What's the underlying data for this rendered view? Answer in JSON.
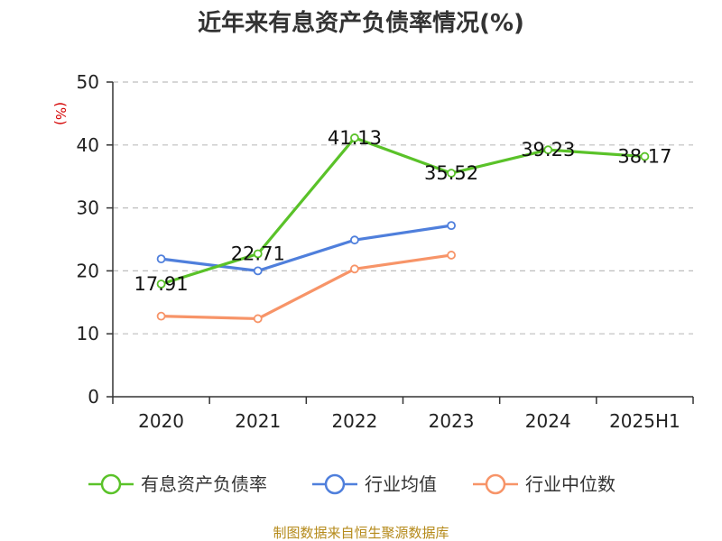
{
  "chart_data": {
    "type": "line",
    "title": "近年来有息资产负债率情况(%)",
    "ylabel": "(%)",
    "xlabel": "",
    "categories": [
      "2020",
      "2021",
      "2022",
      "2023",
      "2024",
      "2025H1"
    ],
    "ylim": [
      0,
      50
    ],
    "yticks": [
      0,
      10,
      20,
      30,
      40,
      50
    ],
    "grid": true,
    "legend_position": "bottom",
    "series": [
      {
        "name": "有息资产负债率",
        "color": "#5ac229",
        "values": [
          17.91,
          22.71,
          41.13,
          35.52,
          39.23,
          38.17
        ],
        "data_labels": [
          "17.91",
          "22.71",
          "41.13",
          "35.52",
          "39.23",
          "38.17"
        ]
      },
      {
        "name": "行业均值",
        "color": "#4f7fdc",
        "values": [
          21.9,
          20.0,
          24.9,
          27.2,
          null,
          null
        ]
      },
      {
        "name": "行业中位数",
        "color": "#f79468",
        "values": [
          12.8,
          12.4,
          20.3,
          22.5,
          null,
          null
        ]
      }
    ]
  },
  "source": "制图数据来自恒生聚源数据库"
}
